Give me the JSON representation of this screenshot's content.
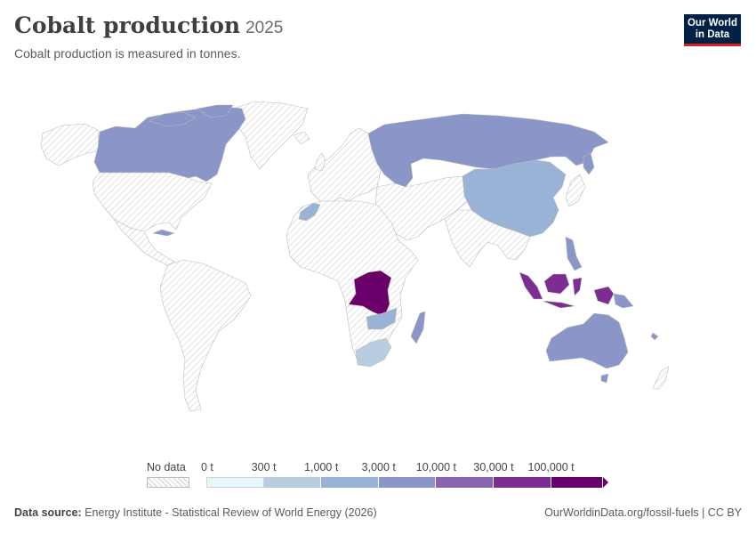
{
  "header": {
    "title": "Cobalt production",
    "year": "2025",
    "subtitle": "Cobalt production is measured in tonnes."
  },
  "logo": {
    "line1": "Our World",
    "line2": "in Data"
  },
  "legend": {
    "no_data_label": "No data",
    "bins": [
      {
        "label": "0 t",
        "color": "#e9f6f9"
      },
      {
        "label": "300 t",
        "color": "#b9cde0"
      },
      {
        "label": "1,000 t",
        "color": "#98b3d5"
      },
      {
        "label": "3,000 t",
        "color": "#8a95c8"
      },
      {
        "label": "10,000 t",
        "color": "#8a63ad"
      },
      {
        "label": "30,000 t",
        "color": "#7c2c93"
      },
      {
        "label": "100,000 t",
        "color": "#6a0069"
      }
    ]
  },
  "map_data": {
    "region": "World",
    "unit": "tonnes",
    "countries": [
      {
        "name": "Democratic Republic of Congo",
        "bin": "100,000 t and above",
        "color": "#6a0069"
      },
      {
        "name": "Indonesia",
        "bin": "30,000 – 100,000 t",
        "color": "#7c2c93"
      },
      {
        "name": "Russia",
        "bin": "3,000 – 10,000 t",
        "color": "#8a95c8"
      },
      {
        "name": "Australia",
        "bin": "3,000 – 10,000 t",
        "color": "#8a95c8"
      },
      {
        "name": "Canada",
        "bin": "3,000 – 10,000 t",
        "color": "#8a95c8"
      },
      {
        "name": "Madagascar",
        "bin": "3,000 – 10,000 t",
        "color": "#8a95c8"
      },
      {
        "name": "Philippines",
        "bin": "3,000 – 10,000 t",
        "color": "#8a95c8"
      },
      {
        "name": "Cuba",
        "bin": "3,000 – 10,000 t",
        "color": "#8a95c8"
      },
      {
        "name": "Papua New Guinea",
        "bin": "3,000 – 10,000 t",
        "color": "#8a95c8"
      },
      {
        "name": "New Caledonia",
        "bin": "3,000 – 10,000 t",
        "color": "#8a95c8"
      },
      {
        "name": "China",
        "bin": "1,000 – 3,000 t",
        "color": "#98b3d5"
      },
      {
        "name": "Morocco",
        "bin": "1,000 – 3,000 t",
        "color": "#98b3d5"
      },
      {
        "name": "Zambia",
        "bin": "1,000 – 3,000 t",
        "color": "#98b3d5"
      },
      {
        "name": "South Africa",
        "bin": "300 – 1,000 t",
        "color": "#b9cde0"
      }
    ]
  },
  "footer": {
    "source_label": "Data source:",
    "source_text": "Energy Institute - Statistical Review of World Energy (2026)",
    "url": "OurWorldinData.org/fossil-fuels | CC BY"
  }
}
